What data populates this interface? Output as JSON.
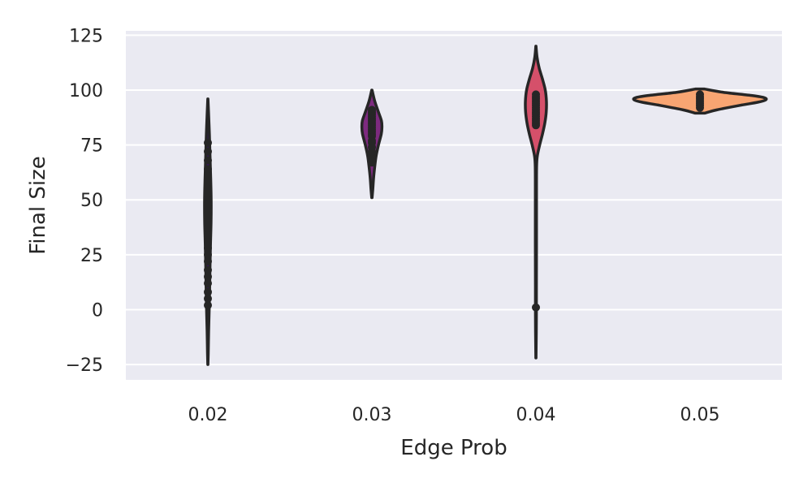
{
  "chart_data": {
    "type": "violin",
    "title": "",
    "xlabel": "Edge Prob",
    "ylabel": "Final Size",
    "categories": [
      "0.02",
      "0.03",
      "0.04",
      "0.05"
    ],
    "ylim": [
      -32,
      127
    ],
    "yticks": [
      -25,
      0,
      25,
      50,
      75,
      100,
      125
    ],
    "ytick_labels": [
      "−25",
      "0",
      "25",
      "50",
      "75",
      "100",
      "125"
    ],
    "grid": true,
    "background": "#eaeaf2",
    "grid_color": "#ffffff",
    "colors": [
      "#3b0f70",
      "#7d2a7f",
      "#d5506a",
      "#f8a572"
    ],
    "violins": [
      {
        "category": "0.02",
        "extent": [
          -25,
          96
        ],
        "profile": [
          [
            -25,
            0.001
          ],
          [
            -20,
            0.004
          ],
          [
            -10,
            0.008
          ],
          [
            0,
            0.014
          ],
          [
            10,
            0.019
          ],
          [
            20,
            0.023
          ],
          [
            30,
            0.028
          ],
          [
            40,
            0.034
          ],
          [
            50,
            0.035
          ],
          [
            60,
            0.03
          ],
          [
            70,
            0.023
          ],
          [
            80,
            0.016
          ],
          [
            90,
            0.007
          ],
          [
            96,
            0.001
          ]
        ],
        "points": [
          2,
          5,
          8,
          12,
          15,
          18,
          22,
          25,
          28,
          31,
          34,
          37,
          40,
          43,
          45,
          48,
          50,
          53,
          55,
          58,
          61,
          64,
          68,
          72,
          76
        ]
      },
      {
        "category": "0.03",
        "extent": [
          51,
          100
        ],
        "profile": [
          [
            51,
            0.002
          ],
          [
            55,
            0.01
          ],
          [
            60,
            0.018
          ],
          [
            65,
            0.03
          ],
          [
            70,
            0.045
          ],
          [
            75,
            0.07
          ],
          [
            80,
            0.1
          ],
          [
            83,
            0.107
          ],
          [
            86,
            0.102
          ],
          [
            90,
            0.07
          ],
          [
            95,
            0.03
          ],
          [
            100,
            0.002
          ]
        ],
        "points": [
          67,
          70,
          72,
          74,
          76,
          77,
          79,
          80,
          81,
          82,
          83,
          84,
          85,
          86,
          87,
          88,
          89,
          90,
          91
        ]
      },
      {
        "category": "0.04",
        "extent": [
          -22,
          120
        ],
        "profile": [
          [
            -22,
            0.001
          ],
          [
            -10,
            0.004
          ],
          [
            0,
            0.005
          ],
          [
            10,
            0.005
          ],
          [
            30,
            0.006
          ],
          [
            50,
            0.006
          ],
          [
            65,
            0.007
          ],
          [
            70,
            0.015
          ],
          [
            75,
            0.04
          ],
          [
            80,
            0.07
          ],
          [
            85,
            0.095
          ],
          [
            90,
            0.11
          ],
          [
            95,
            0.112
          ],
          [
            100,
            0.1
          ],
          [
            105,
            0.07
          ],
          [
            110,
            0.035
          ],
          [
            115,
            0.012
          ],
          [
            120,
            0.001
          ]
        ],
        "points": [
          1,
          84,
          85,
          86,
          87,
          88,
          89,
          90,
          91,
          92,
          93,
          94,
          95,
          96,
          97,
          98
        ]
      },
      {
        "category": "0.05",
        "extent": [
          89.5,
          100.5
        ],
        "profile": [
          [
            89.5,
            0.05
          ],
          [
            91,
            0.18
          ],
          [
            93,
            0.42
          ],
          [
            94.5,
            0.62
          ],
          [
            95.5,
            0.7
          ],
          [
            96.5,
            0.69
          ],
          [
            97.5,
            0.56
          ],
          [
            99,
            0.25
          ],
          [
            100.5,
            0.05
          ]
        ],
        "points": [
          92,
          93,
          94,
          95,
          96,
          97,
          98
        ]
      }
    ]
  }
}
